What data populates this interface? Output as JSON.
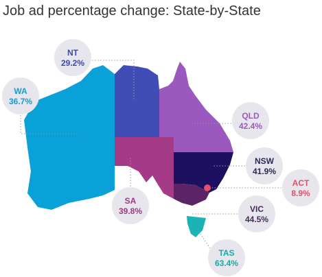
{
  "title": "Job ad percentage change: State-by-State",
  "states": [
    {
      "name": "WA",
      "label": "36.7%"
    },
    {
      "name": "NT",
      "label": "29.2%"
    },
    {
      "name": "QLD",
      "label": "42.4%"
    },
    {
      "name": "NSW",
      "label": "41.9%"
    },
    {
      "name": "ACT",
      "label": "8.9%"
    },
    {
      "name": "SA",
      "label": "39.8%"
    },
    {
      "name": "VIC",
      "label": "44.5%"
    },
    {
      "name": "TAS",
      "label": "63.4%"
    }
  ]
}
